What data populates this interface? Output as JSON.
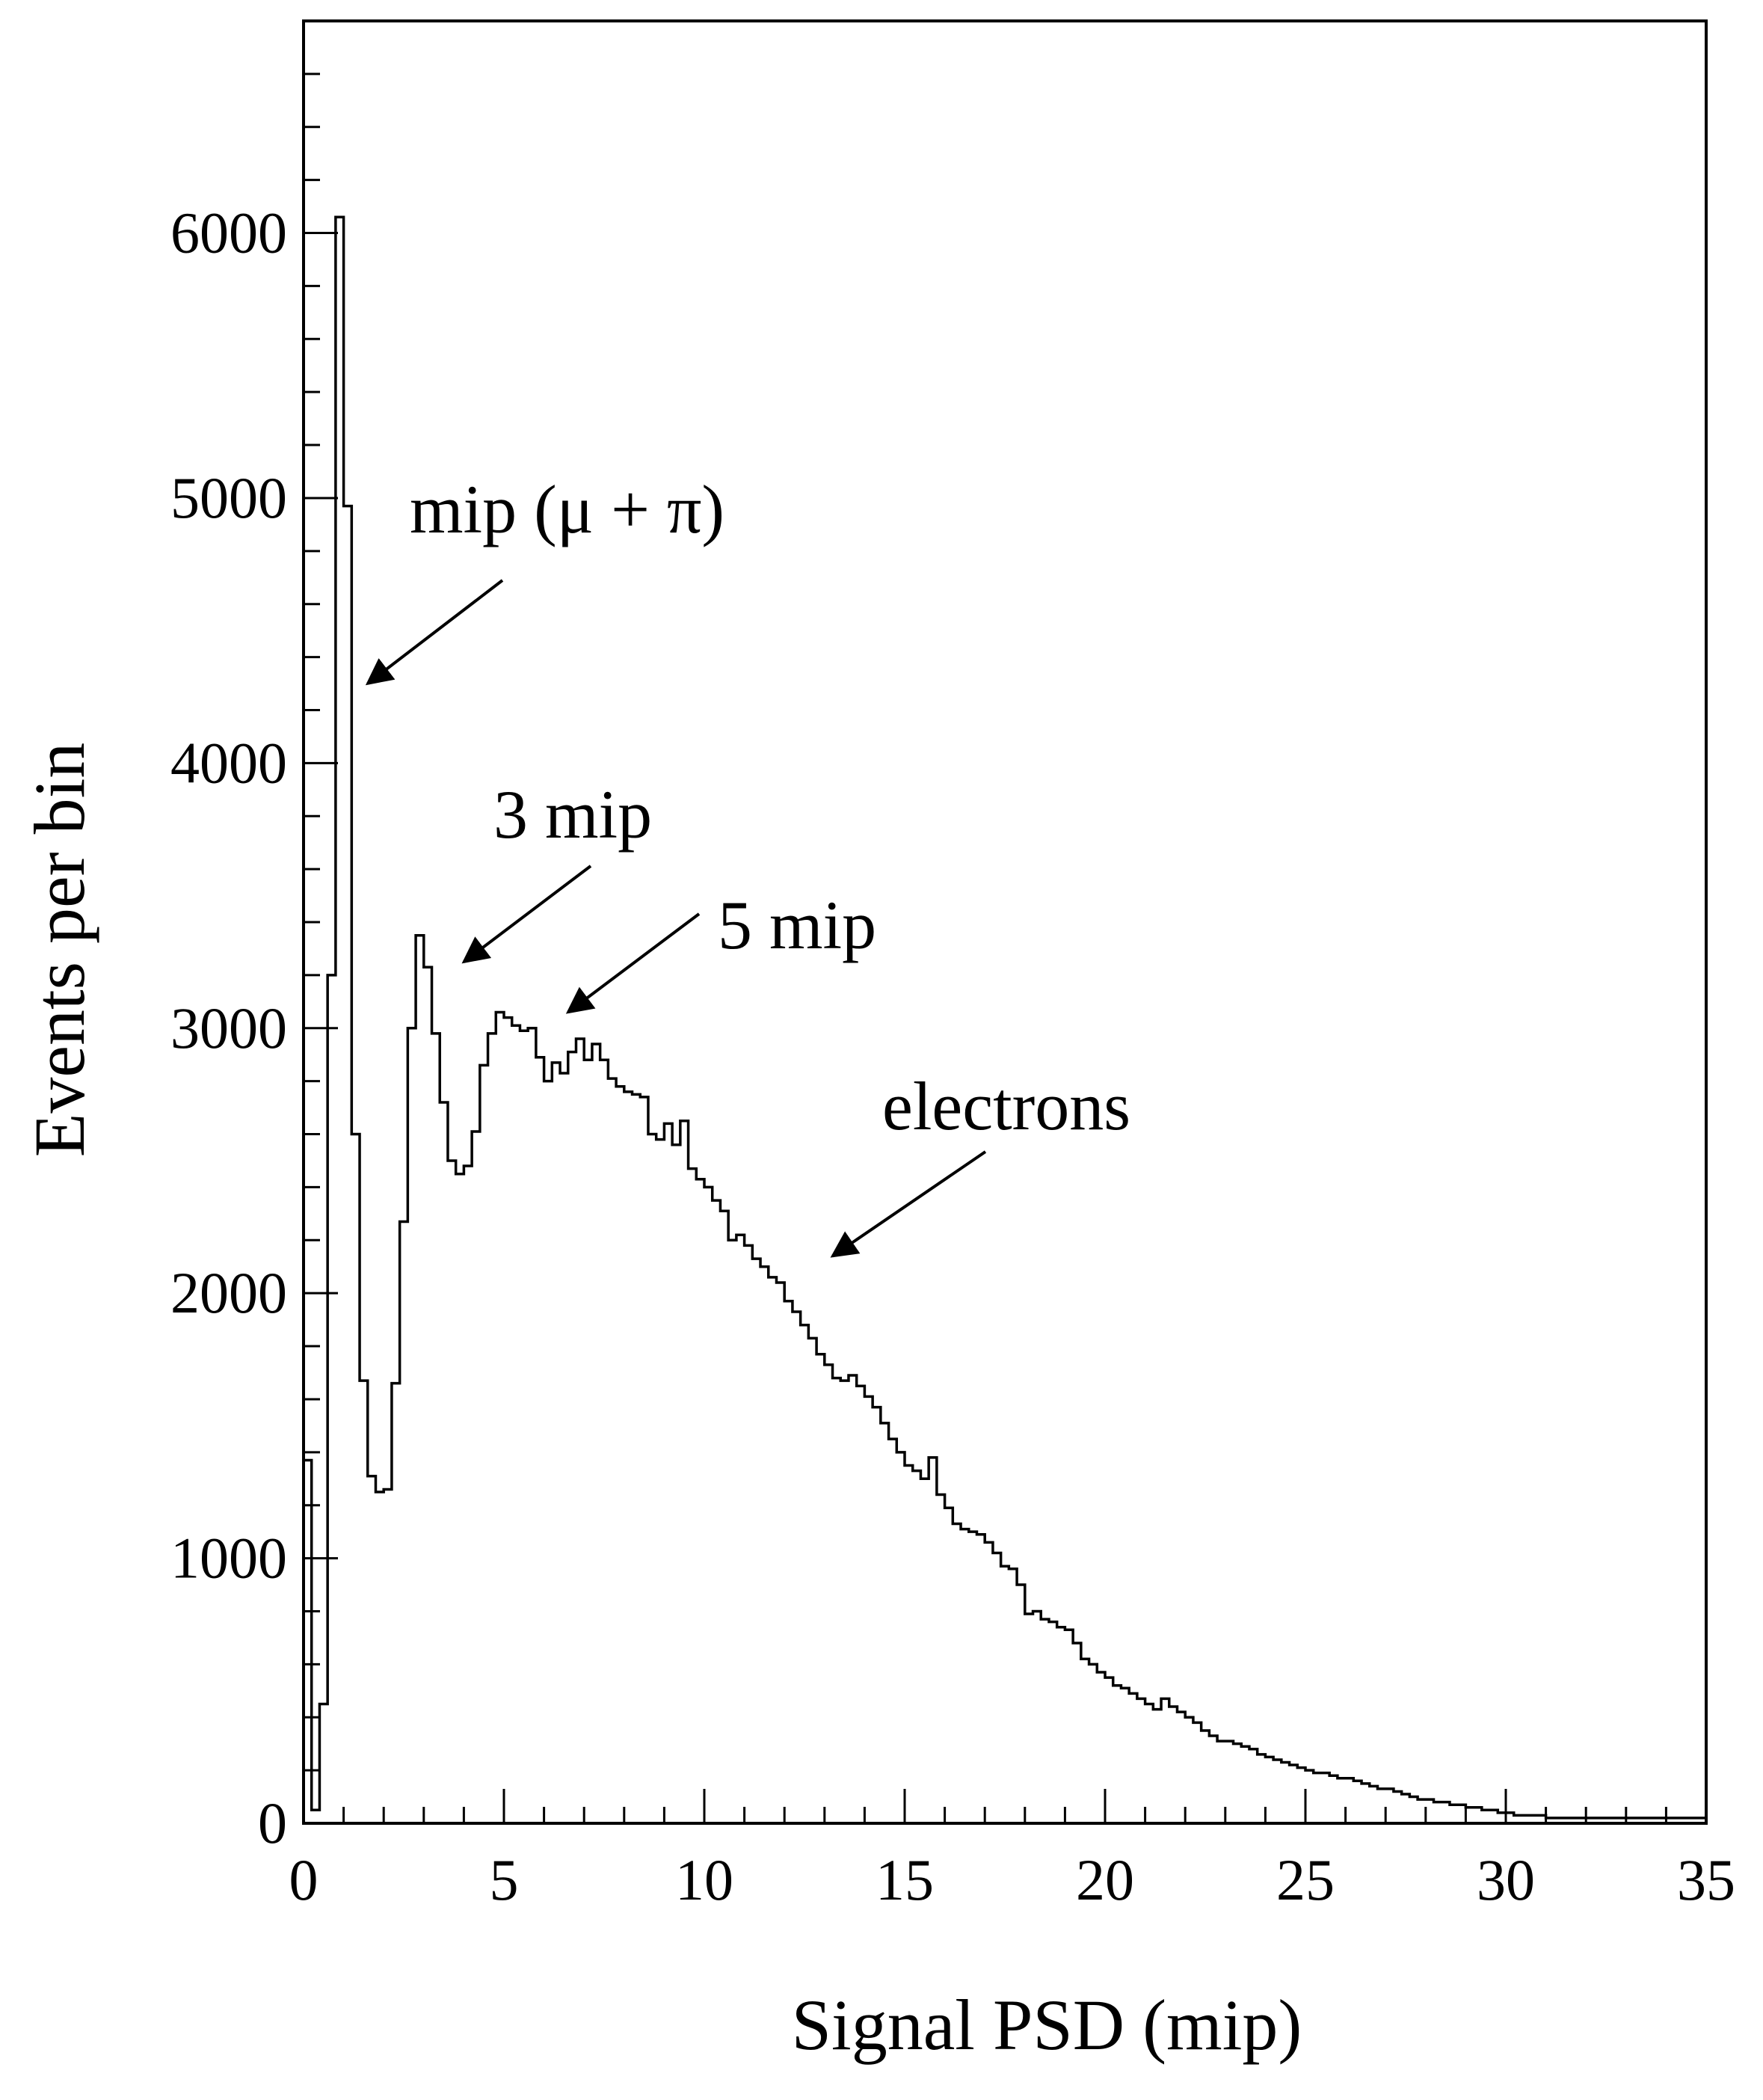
{
  "chart_data": {
    "type": "bar",
    "style": "step-histogram",
    "xlabel": "Signal PSD (mip)",
    "ylabel": "Events per bin",
    "xlim": [
      0,
      35
    ],
    "ylim": [
      0,
      6800
    ],
    "x_ticks": [
      0,
      5,
      10,
      15,
      20,
      25,
      30,
      35
    ],
    "y_ticks": [
      0,
      1000,
      2000,
      3000,
      4000,
      5000,
      6000
    ],
    "x_minor_step": 1,
    "y_minor_step": 200,
    "grid": false,
    "legend": "none",
    "line_color": "#000000",
    "bin_width": 0.2,
    "x_start": 0,
    "values": [
      1370,
      50,
      450,
      3200,
      6060,
      4970,
      2600,
      1670,
      1310,
      1250,
      1260,
      1660,
      2270,
      3000,
      3350,
      3230,
      2980,
      2720,
      2500,
      2450,
      2480,
      2610,
      2860,
      2980,
      3060,
      3040,
      3010,
      2990,
      3000,
      2890,
      2800,
      2870,
      2830,
      2910,
      2960,
      2880,
      2940,
      2880,
      2810,
      2780,
      2760,
      2750,
      2740,
      2600,
      2580,
      2640,
      2560,
      2650,
      2470,
      2430,
      2400,
      2350,
      2310,
      2200,
      2220,
      2180,
      2130,
      2100,
      2060,
      2040,
      1970,
      1930,
      1880,
      1830,
      1770,
      1730,
      1680,
      1670,
      1690,
      1650,
      1610,
      1570,
      1510,
      1450,
      1400,
      1350,
      1330,
      1300,
      1380,
      1240,
      1190,
      1130,
      1110,
      1100,
      1090,
      1060,
      1020,
      970,
      960,
      900,
      790,
      800,
      770,
      760,
      740,
      730,
      680,
      620,
      600,
      570,
      550,
      520,
      510,
      490,
      470,
      450,
      430,
      470,
      440,
      420,
      400,
      380,
      350,
      330,
      310,
      310,
      300,
      290,
      280,
      260,
      250,
      240,
      230,
      220,
      210,
      200,
      190,
      190,
      180,
      170,
      170,
      160,
      150,
      140,
      130,
      130,
      120,
      110,
      100,
      90,
      90,
      80,
      80,
      70,
      70,
      60,
      60,
      50,
      50,
      40,
      40,
      30,
      30,
      30,
      30,
      20,
      20,
      20,
      20,
      20,
      20,
      20,
      20,
      20,
      20,
      20,
      20,
      20,
      20,
      20,
      20,
      20,
      20,
      20,
      20,
      20
    ],
    "annotations": [
      {
        "text": "mip (μ + π)",
        "arrow_to": [
          1.6,
          4300
        ]
      },
      {
        "text": "3 mip",
        "arrow_to": [
          4.0,
          3250
        ]
      },
      {
        "text": "5 mip",
        "arrow_to": [
          6.6,
          3060
        ]
      },
      {
        "text": "electrons",
        "arrow_to": [
          13.2,
          2140
        ]
      }
    ]
  }
}
